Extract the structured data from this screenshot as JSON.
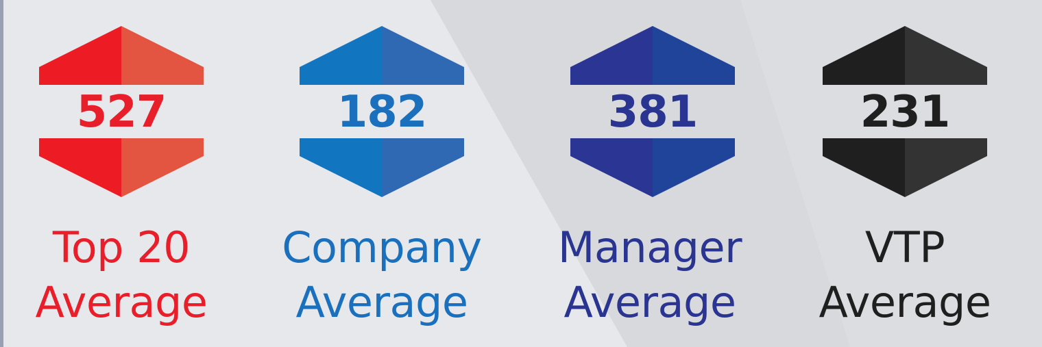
{
  "badges": [
    {
      "value": "527",
      "line1": "Top 20",
      "line2": "Average",
      "color_dark": "#ed1c24",
      "color_light": "#e35540",
      "text_color": "#e81f2a"
    },
    {
      "value": "182",
      "line1": "Company",
      "line2": "Average",
      "color_dark": "#1275bf",
      "color_light": "#2f68b3",
      "text_color": "#1a70bd"
    },
    {
      "value": "381",
      "line1": "Manager",
      "line2": "Average",
      "color_dark": "#2b3594",
      "color_light": "#21449b",
      "text_color": "#2a3592"
    },
    {
      "value": "231",
      "line1": "VTP",
      "line2": "Average",
      "color_dark": "#1f1f1f",
      "color_light": "#333333",
      "text_color": "#1f1f1f"
    }
  ]
}
